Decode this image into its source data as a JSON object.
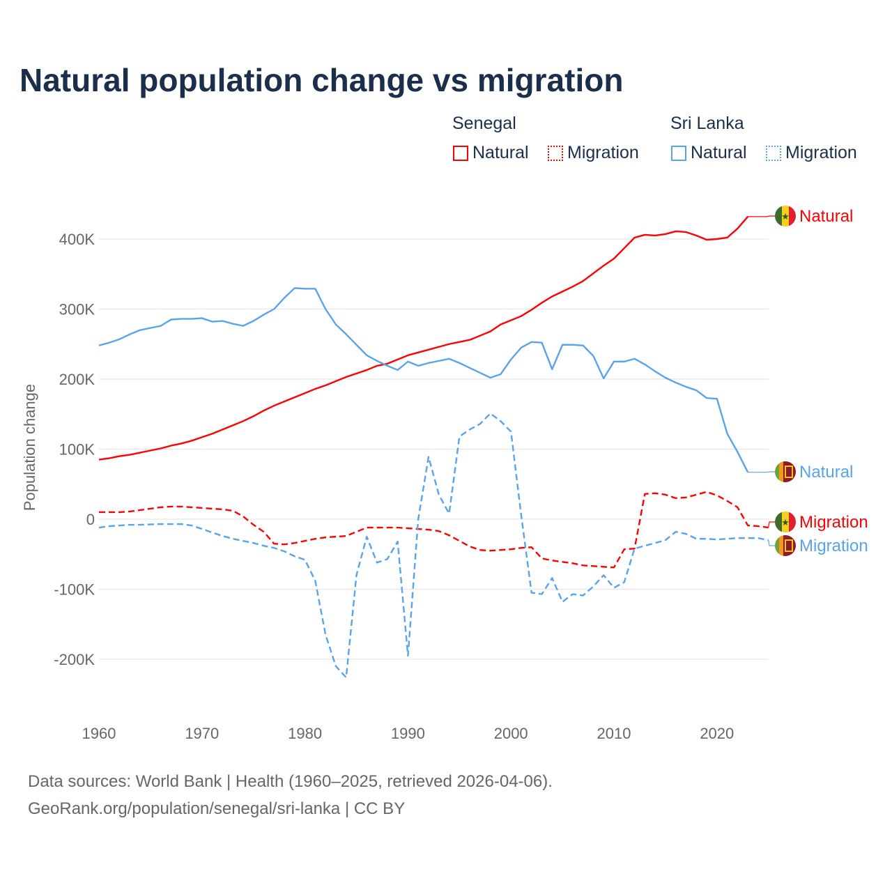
{
  "title": "Natural population change vs migration",
  "legend": {
    "groups": [
      {
        "country": "Senegal",
        "color": "#ff0000",
        "items": [
          "Natural",
          "Migration"
        ]
      },
      {
        "country": "Sri Lanka",
        "color": "#5ba3e8",
        "items": [
          "Natural",
          "Migration"
        ]
      }
    ]
  },
  "footer": {
    "line1": "Data sources: World Bank | Health (1960–2025, retrieved 2026-04-06).",
    "line2": "GeoRank.org/population/senegal/sri-lanka | CC BY"
  },
  "chart_data": {
    "type": "line",
    "title": "Natural population change vs migration",
    "xlabel": "",
    "ylabel": "Population change",
    "xlim": [
      1960,
      2025
    ],
    "ylim": [
      -260000,
      460000
    ],
    "x_ticks": [
      1960,
      1970,
      1980,
      1990,
      2000,
      2010,
      2020
    ],
    "x_tick_labels": [
      "1960",
      "1970",
      "1980",
      "1990",
      "2000",
      "2010",
      "2020"
    ],
    "y_ticks": [
      -200000,
      -100000,
      0,
      100000,
      200000,
      300000,
      400000
    ],
    "y_tick_labels": [
      "-200K",
      "-100K",
      "0",
      "100K",
      "200K",
      "300K",
      "400K"
    ],
    "grid": true,
    "legend_position": "top-right",
    "x_start": 1960,
    "unit": "thousands",
    "series": [
      {
        "name": "Senegal Natural",
        "label": "Natural",
        "country": "Senegal",
        "color": "#ff0000",
        "dash": false,
        "values": [
          85,
          87,
          90,
          92,
          95,
          98,
          101,
          105,
          108,
          112,
          117,
          122,
          128,
          134,
          140,
          147,
          155,
          162,
          168,
          174,
          180,
          186,
          191,
          197,
          203,
          208,
          213,
          219,
          222,
          228,
          234,
          238,
          242,
          246,
          250,
          253,
          256,
          262,
          268,
          278,
          284,
          290,
          299,
          309,
          318,
          325,
          332,
          340,
          351,
          362,
          372,
          387,
          402,
          406,
          405,
          407,
          411,
          410,
          405,
          399,
          400,
          402,
          415,
          432
        ]
      },
      {
        "name": "Senegal Migration",
        "label": "Migration",
        "country": "Senegal",
        "color": "#ff0000",
        "dash": true,
        "values": [
          10,
          10,
          10,
          11,
          13,
          15,
          17,
          18,
          18,
          17,
          16,
          15,
          14,
          12,
          4,
          -8,
          -18,
          -35,
          -36,
          -34,
          -31,
          -28,
          -26,
          -25,
          -24,
          -18,
          -12,
          -12,
          -12,
          -12,
          -13,
          -14,
          -15,
          -17,
          -23,
          -31,
          -39,
          -44,
          -45,
          -44,
          -43,
          -41,
          -40,
          -56,
          -59,
          -61,
          -63,
          -66,
          -67,
          -68,
          -69,
          -43,
          -42,
          36,
          37,
          35,
          30,
          31,
          35,
          39,
          34,
          26,
          17,
          -9,
          -10,
          -12
        ]
      },
      {
        "name": "Sri Lanka Natural",
        "label": "Natural",
        "country": "Sri Lanka",
        "color": "#5ba3e8",
        "dash": false,
        "values": [
          248,
          252,
          257,
          264,
          270,
          273,
          276,
          285,
          286,
          286,
          287,
          282,
          283,
          279,
          276,
          283,
          292,
          300,
          316,
          330,
          329,
          329,
          300,
          278,
          264,
          249,
          234,
          226,
          219,
          213,
          225,
          219,
          223,
          226,
          229,
          223,
          216,
          209,
          202,
          207,
          228,
          245,
          253,
          252,
          214,
          249,
          249,
          248,
          233,
          201,
          225,
          225,
          229,
          221,
          211,
          202,
          195,
          189,
          184,
          173,
          172,
          122,
          96,
          67
        ]
      },
      {
        "name": "Sri Lanka Migration",
        "label": "Migration",
        "country": "Sri Lanka",
        "color": "#5ba3e8",
        "dash": true,
        "values": [
          -12,
          -10,
          -9,
          -8,
          -8,
          -7.5,
          -7,
          -7,
          -7,
          -9,
          -14,
          -19,
          -24,
          -28,
          -31,
          -34,
          -38,
          -41,
          -46,
          -53,
          -58,
          -88,
          -165,
          -210,
          -226,
          -80,
          -25,
          -62,
          -57,
          -32,
          -195,
          0,
          89,
          35,
          8,
          118,
          128,
          136,
          151,
          140,
          125,
          5,
          -105,
          -107,
          -84,
          -118,
          -107,
          -109,
          -96,
          -80,
          -98,
          -90,
          -42,
          -38,
          -34,
          -30,
          -18,
          -21,
          -28,
          -28,
          -29,
          -28,
          -27,
          -27,
          -27,
          -30
        ]
      }
    ]
  }
}
